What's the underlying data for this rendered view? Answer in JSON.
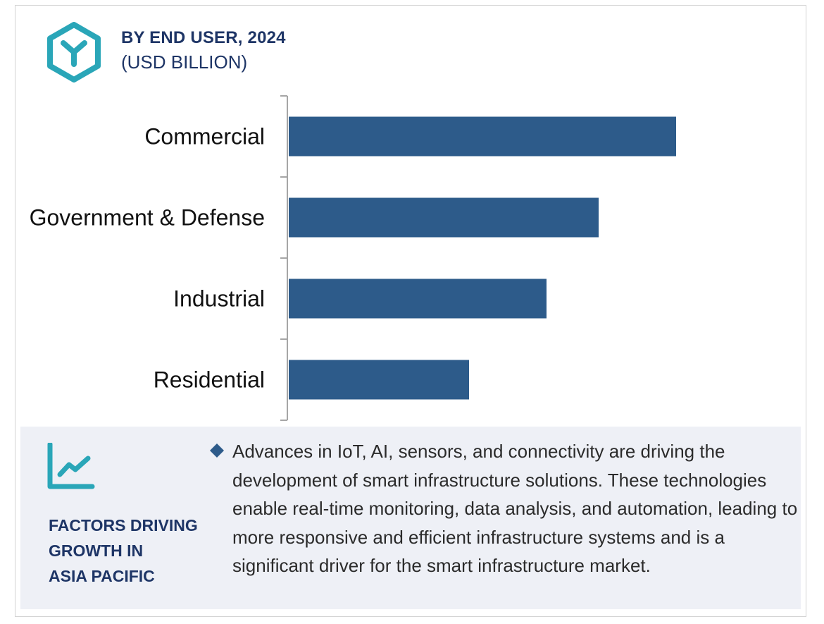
{
  "header": {
    "title": "BY END USER, 2024",
    "subtitle": "(USD BILLION)",
    "logo_icon": "hexagon-y-logo-icon"
  },
  "chart_data": {
    "type": "bar",
    "orientation": "horizontal",
    "title": "BY END USER, 2024",
    "subtitle": "(USD BILLION)",
    "xlabel": "",
    "ylabel": "",
    "categories": [
      "Commercial",
      "Government & Defense",
      "Industrial",
      "Residential"
    ],
    "values": [
      5.5,
      4.4,
      3.66,
      2.56
    ],
    "xlim": [
      0,
      5.5
    ],
    "axis_visible": false,
    "grid": false,
    "bar_color": "#2d5b8a"
  },
  "factors": {
    "icon": "trend-chart-icon",
    "title_lines": [
      "FACTORS DRIVING",
      "GROWTH IN",
      "ASIA PACIFIC"
    ],
    "bullet_icon": "diamond-bullet-icon",
    "bullet_text": "Advances in IoT, AI, sensors, and connectivity are driving the development of smart infrastructure solutions. These technologies enable real-time monitoring, data analysis, and automation, leading to more responsive and efficient infrastructure systems and is a significant driver for the smart infrastructure market."
  },
  "colors": {
    "accent_teal": "#2aa6b8",
    "title_navy": "#1e3566",
    "bar": "#2d5b8a",
    "panel_bg": "#eef0f6"
  }
}
